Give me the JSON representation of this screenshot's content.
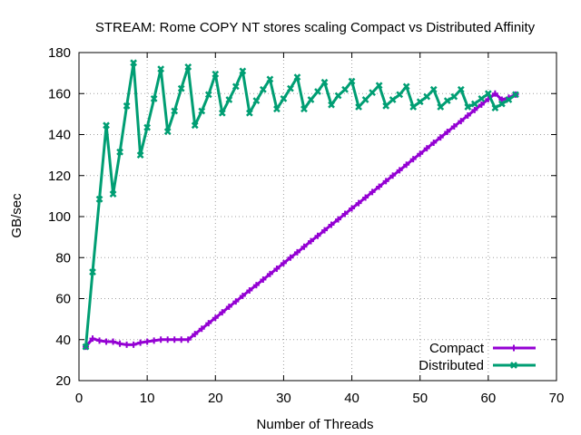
{
  "chart_data": {
    "type": "line",
    "title": "STREAM: Rome COPY NT stores scaling Compact vs Distributed Affinity",
    "xlabel": "Number of Threads",
    "ylabel": "GB/sec",
    "xlim": [
      0,
      70
    ],
    "ylim": [
      20,
      180
    ],
    "xticks": [
      0,
      10,
      20,
      30,
      40,
      50,
      60,
      70
    ],
    "yticks": [
      20,
      40,
      60,
      80,
      100,
      120,
      140,
      160,
      180
    ],
    "grid": true,
    "legend_position": "bottom-right",
    "series": [
      {
        "name": "Compact",
        "color": "#9400d3",
        "marker": "plus",
        "x": [
          1,
          2,
          3,
          4,
          5,
          6,
          7,
          8,
          9,
          10,
          11,
          12,
          13,
          14,
          15,
          16,
          17,
          18,
          19,
          20,
          21,
          22,
          23,
          24,
          25,
          26,
          27,
          28,
          29,
          30,
          31,
          32,
          33,
          34,
          35,
          36,
          37,
          38,
          39,
          40,
          41,
          42,
          43,
          44,
          45,
          46,
          47,
          48,
          49,
          50,
          51,
          52,
          53,
          54,
          55,
          56,
          57,
          58,
          59,
          60,
          61,
          62,
          63,
          64
        ],
        "values": [
          36.5,
          40.5,
          39.5,
          39,
          39,
          38,
          37.5,
          37.5,
          38.5,
          39,
          39.5,
          40,
          40,
          40,
          40,
          40,
          42.7,
          45.3,
          48,
          50.6,
          53.3,
          56,
          58.6,
          61.3,
          64,
          66.6,
          69.3,
          72,
          74.6,
          77.3,
          80,
          82.6,
          85.3,
          88,
          90.6,
          93.3,
          96,
          98.6,
          101.3,
          104,
          106.6,
          109.3,
          112,
          114.6,
          117.3,
          120,
          122.6,
          125.3,
          128,
          130.6,
          133.3,
          136,
          138.6,
          141.3,
          144,
          146.6,
          149.3,
          152,
          154.6,
          157.3,
          160,
          157,
          158,
          159.5
        ]
      },
      {
        "name": "Distributed",
        "color": "#009e73",
        "marker": "cross",
        "x": [
          1,
          2,
          3,
          4,
          5,
          6,
          7,
          8,
          9,
          10,
          11,
          12,
          13,
          14,
          15,
          16,
          17,
          18,
          19,
          20,
          21,
          22,
          23,
          24,
          25,
          26,
          27,
          28,
          29,
          30,
          31,
          32,
          33,
          34,
          35,
          36,
          37,
          38,
          39,
          40,
          41,
          42,
          43,
          44,
          45,
          46,
          47,
          48,
          49,
          50,
          51,
          52,
          53,
          54,
          55,
          56,
          57,
          58,
          59,
          60,
          61,
          62,
          63,
          64
        ],
        "values": [
          36.5,
          73,
          108.5,
          144.5,
          111,
          131.5,
          154,
          175,
          130,
          143.5,
          157.5,
          172,
          141.5,
          151.5,
          162.5,
          173,
          144.5,
          151.5,
          159.5,
          169.5,
          150.5,
          157,
          163.5,
          171,
          150.5,
          156.5,
          162,
          167,
          152.5,
          157.5,
          162.5,
          168,
          152.5,
          157,
          161,
          165.5,
          154.5,
          159,
          162,
          166,
          153.5,
          157,
          160.5,
          164,
          154,
          157,
          159.5,
          163.5,
          153.5,
          156,
          158.5,
          162,
          153.5,
          156.5,
          158.5,
          162,
          153.5,
          155,
          157.5,
          160,
          153,
          155,
          157,
          159.5
        ]
      }
    ]
  }
}
